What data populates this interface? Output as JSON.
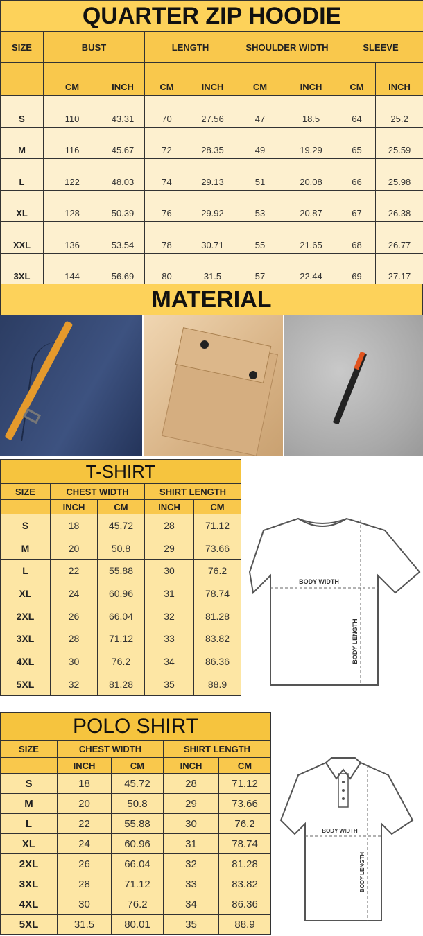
{
  "hoodie": {
    "title": "QUARTER ZIP HOODIE",
    "size_label": "SIZE",
    "groups": [
      "BUST",
      "LENGTH",
      "SHOULDER WIDTH",
      "SLEEVE"
    ],
    "units": [
      "CM",
      "INCH",
      "CM",
      "INCH",
      "CM",
      "INCH",
      "CM",
      "INCH"
    ],
    "rows": [
      [
        "S",
        "110",
        "43.31",
        "70",
        "27.56",
        "47",
        "18.5",
        "64",
        "25.2"
      ],
      [
        "M",
        "116",
        "45.67",
        "72",
        "28.35",
        "49",
        "19.29",
        "65",
        "25.59"
      ],
      [
        "L",
        "122",
        "48.03",
        "74",
        "29.13",
        "51",
        "20.08",
        "66",
        "25.98"
      ],
      [
        "XL",
        "128",
        "50.39",
        "76",
        "29.92",
        "53",
        "20.87",
        "67",
        "26.38"
      ],
      [
        "XXL",
        "136",
        "53.54",
        "78",
        "30.71",
        "55",
        "21.65",
        "68",
        "26.77"
      ],
      [
        "3XL",
        "144",
        "56.69",
        "80",
        "31.5",
        "57",
        "22.44",
        "69",
        "27.17"
      ]
    ]
  },
  "material": {
    "title": "MATERIAL",
    "photos": [
      "navy-fabric-orange-strap",
      "tan-fabric-pocket",
      "gray-fabric-zipper"
    ]
  },
  "tshirt": {
    "title": "T-SHIRT",
    "size_label": "SIZE",
    "groups": [
      "CHEST WIDTH",
      "SHIRT LENGTH"
    ],
    "units": [
      "INCH",
      "CM",
      "INCH",
      "CM"
    ],
    "rows": [
      [
        "S",
        "18",
        "45.72",
        "28",
        "71.12"
      ],
      [
        "M",
        "20",
        "50.8",
        "29",
        "73.66"
      ],
      [
        "L",
        "22",
        "55.88",
        "30",
        "76.2"
      ],
      [
        "XL",
        "24",
        "60.96",
        "31",
        "78.74"
      ],
      [
        "2XL",
        "26",
        "66.04",
        "32",
        "81.28"
      ],
      [
        "3XL",
        "28",
        "71.12",
        "33",
        "83.82"
      ],
      [
        "4XL",
        "30",
        "76.2",
        "34",
        "86.36"
      ],
      [
        "5XL",
        "32",
        "81.28",
        "35",
        "88.9"
      ]
    ],
    "diagram": {
      "width_label": "BODY WIDTH",
      "length_label": "BODY LENGTH"
    }
  },
  "polo": {
    "title": "POLO SHIRT",
    "size_label": "SIZE",
    "groups": [
      "CHEST WIDTH",
      "SHIRT LENGTH"
    ],
    "units": [
      "INCH",
      "CM",
      "INCH",
      "CM"
    ],
    "rows": [
      [
        "S",
        "18",
        "45.72",
        "28",
        "71.12"
      ],
      [
        "M",
        "20",
        "50.8",
        "29",
        "73.66"
      ],
      [
        "L",
        "22",
        "55.88",
        "30",
        "76.2"
      ],
      [
        "XL",
        "24",
        "60.96",
        "31",
        "78.74"
      ],
      [
        "2XL",
        "26",
        "66.04",
        "32",
        "81.28"
      ],
      [
        "3XL",
        "28",
        "71.12",
        "33",
        "83.82"
      ],
      [
        "4XL",
        "30",
        "76.2",
        "34",
        "86.36"
      ],
      [
        "5XL",
        "31.5",
        "80.01",
        "35",
        "88.9"
      ]
    ],
    "diagram": {
      "width_label": "BODY WIDTH",
      "length_label": "BODY LENGTH"
    }
  },
  "colors": {
    "title_bg": "#fdd25a",
    "header_bg": "#f9c84c",
    "cell_bg": "#fdf0cf",
    "table_border": "#333333"
  }
}
